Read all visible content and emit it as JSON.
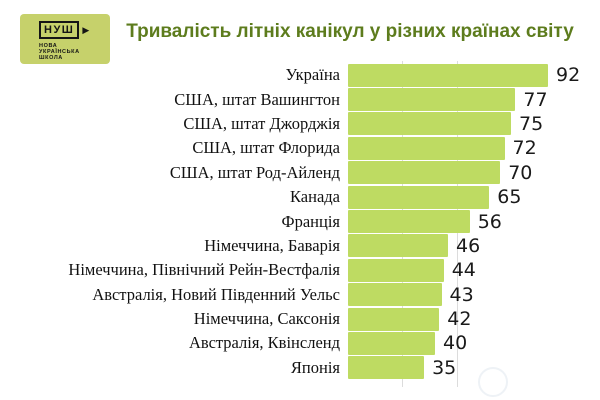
{
  "title": "Тривалість літніх канікул у різних країнах світу",
  "logo": {
    "acronym": "НУШ",
    "play_icon": "▶",
    "org_lines": [
      "НОВА",
      "УКРАЇНСЬКА",
      "ШКОЛА"
    ]
  },
  "colors": {
    "bar": "#bedb62",
    "logo_bg": "#c6d16b",
    "title_text": "#5d7c1d",
    "gridline": "#dcdcdc",
    "label_text": "#111111",
    "value_text": "#1a1a1a"
  },
  "chart_data": {
    "type": "bar",
    "orientation": "horizontal",
    "title": "Тривалість літніх канікул у різних країнах світу",
    "categories": [
      "Україна",
      "США, штат Вашингтон",
      "США, штат Джорджія",
      "США, штат Флорида",
      "США, штат Род-Айленд",
      "Канада",
      "Франція",
      "Німеччина, Баварія",
      "Німеччина, Північний Рейн-Вестфалія",
      "Австралія, Новий Південний Уельс",
      "Німеччина, Саксонія",
      "Австралія, Квінсленд",
      "Японія"
    ],
    "values": [
      92,
      77,
      75,
      72,
      70,
      65,
      56,
      46,
      44,
      43,
      42,
      40,
      35
    ],
    "xlim": [
      0,
      100
    ],
    "gridlines_at": [
      25,
      50
    ],
    "value_labels_position": "right-of-bar",
    "legend": false,
    "sort": "descending"
  }
}
